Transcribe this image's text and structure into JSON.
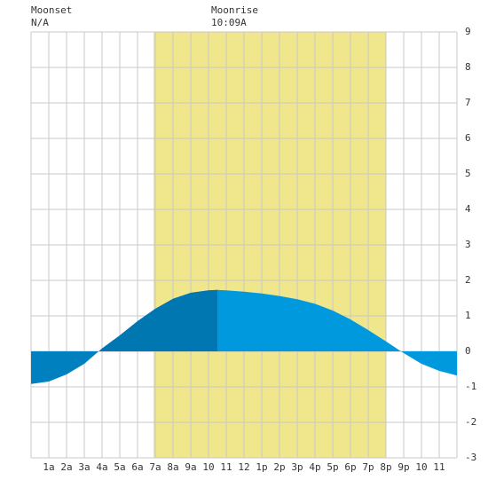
{
  "chart_data": {
    "type": "area",
    "annotations": {
      "moonset_label": "Moonset",
      "moonset_time": "N/A",
      "moonrise_label": "Moonrise",
      "moonrise_time": "10:09A"
    },
    "daylight": {
      "range": [
        6.9,
        20.0
      ],
      "color": "#f0e68c"
    },
    "series": [
      {
        "color": "#0080bf",
        "x": [
          0,
          1,
          2,
          3,
          4,
          5,
          6,
          7,
          8,
          9,
          10,
          10.5
        ],
        "values": [
          -0.92,
          -0.85,
          -0.65,
          -0.35,
          0.08,
          0.45,
          0.85,
          1.2,
          1.48,
          1.65,
          1.72,
          1.73
        ]
      },
      {
        "color": "#0099dd",
        "x": [
          10.5,
          11,
          12,
          13,
          14,
          15,
          16,
          17,
          18,
          19,
          20,
          21,
          22,
          23,
          24
        ],
        "values": [
          1.73,
          1.72,
          1.68,
          1.63,
          1.56,
          1.47,
          1.34,
          1.15,
          0.9,
          0.6,
          0.28,
          -0.05,
          -0.35,
          -0.55,
          -0.68
        ]
      }
    ],
    "dark_color": "#0077b0",
    "xlim": [
      0,
      24
    ],
    "xticks": [
      {
        "value": 1,
        "label": "1a"
      },
      {
        "value": 2,
        "label": "2a"
      },
      {
        "value": 3,
        "label": "3a"
      },
      {
        "value": 4,
        "label": "4a"
      },
      {
        "value": 5,
        "label": "5a"
      },
      {
        "value": 6,
        "label": "6a"
      },
      {
        "value": 7,
        "label": "7a"
      },
      {
        "value": 8,
        "label": "8a"
      },
      {
        "value": 9,
        "label": "9a"
      },
      {
        "value": 10,
        "label": "10"
      },
      {
        "value": 11,
        "label": "11"
      },
      {
        "value": 12,
        "label": "12"
      },
      {
        "value": 13,
        "label": "1p"
      },
      {
        "value": 14,
        "label": "2p"
      },
      {
        "value": 15,
        "label": "3p"
      },
      {
        "value": 16,
        "label": "4p"
      },
      {
        "value": 17,
        "label": "5p"
      },
      {
        "value": 18,
        "label": "6p"
      },
      {
        "value": 19,
        "label": "7p"
      },
      {
        "value": 20,
        "label": "8p"
      },
      {
        "value": 21,
        "label": "9p"
      },
      {
        "value": 22,
        "label": "10"
      },
      {
        "value": 23,
        "label": "11"
      }
    ],
    "ylim": [
      -3,
      9
    ],
    "yticks": [
      -3,
      -2,
      -1,
      0,
      1,
      2,
      3,
      4,
      5,
      6,
      7,
      8,
      9
    ],
    "grid": true
  }
}
